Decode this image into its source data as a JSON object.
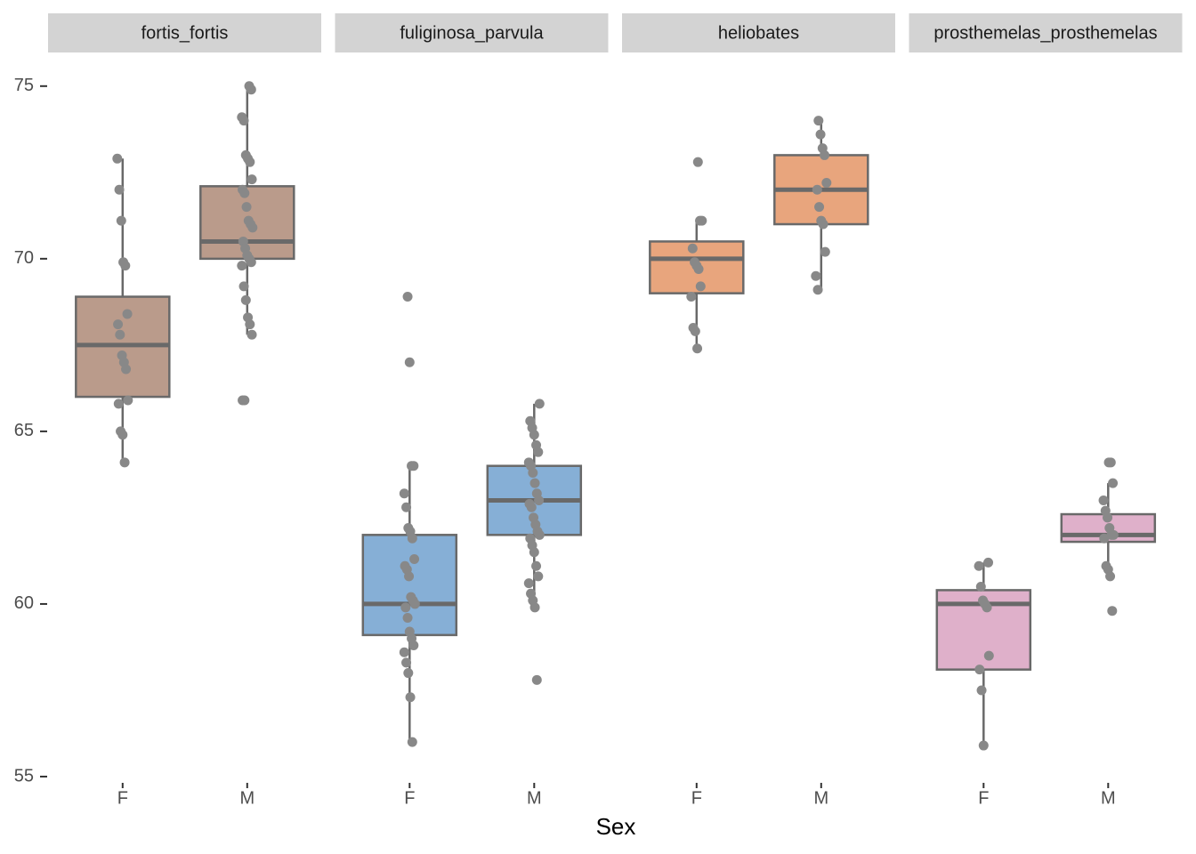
{
  "chart_data": {
    "type": "box",
    "x_label": "Sex",
    "ylim": [
      54.6,
      76
    ],
    "yticks": [
      55,
      60,
      65,
      70,
      75
    ],
    "facets": [
      {
        "title": "fortis_fortis",
        "color": "#ba9b8b",
        "categories": [
          "F",
          "M"
        ],
        "boxes": [
          {
            "min": 64.1,
            "q1": 66,
            "median": 67.5,
            "q3": 68.9,
            "max": 72.9
          },
          {
            "min": 67.8,
            "q1": 70,
            "median": 70.5,
            "q3": 72.1,
            "max": 75
          }
        ],
        "points": [
          [
            72.9,
            72,
            71.1,
            69.9,
            69.8,
            68.4,
            68.1,
            67.8,
            67.2,
            67,
            66.8,
            65.9,
            65.8,
            65,
            64.9,
            64.1
          ],
          [
            75,
            74.9,
            74.1,
            74,
            73,
            72.9,
            72.8,
            72.3,
            72,
            71.9,
            71.5,
            71.1,
            71,
            70.9,
            70.5,
            70.3,
            70.1,
            70,
            69.9,
            69.8,
            69.2,
            68.8,
            68.3,
            68.1,
            67.8,
            65.9,
            65.9
          ]
        ]
      },
      {
        "title": "fuliginosa_parvula",
        "color": "#86afd6",
        "categories": [
          "F",
          "M"
        ],
        "boxes": [
          {
            "min": 56,
            "q1": 59.1,
            "median": 60,
            "q3": 62,
            "max": 64
          },
          {
            "min": 59.9,
            "q1": 62,
            "median": 63,
            "q3": 64,
            "max": 65.8
          }
        ],
        "points": [
          [
            68.9,
            67,
            64,
            64,
            63.2,
            62.8,
            62.2,
            62.1,
            61.9,
            61.3,
            61.1,
            61,
            60.8,
            60.2,
            60.1,
            60,
            59.9,
            59.6,
            59.2,
            59,
            58.8,
            58.6,
            58.3,
            58,
            57.3,
            56
          ],
          [
            65.8,
            65.3,
            65.1,
            64.9,
            64.6,
            64.4,
            64.1,
            64,
            63.8,
            63.5,
            63.2,
            63,
            62.9,
            62.8,
            62.5,
            62.3,
            62.1,
            62,
            61.9,
            61.7,
            61.5,
            61.1,
            60.8,
            60.6,
            60.3,
            60.1,
            59.9,
            57.8
          ]
        ]
      },
      {
        "title": "heliobates",
        "color": "#e8a57d",
        "categories": [
          "F",
          "M"
        ],
        "boxes": [
          {
            "min": 67.4,
            "q1": 69,
            "median": 70,
            "q3": 70.5,
            "max": 71.1
          },
          {
            "min": 69.1,
            "q1": 71,
            "median": 72,
            "q3": 73,
            "max": 74
          }
        ],
        "points": [
          [
            72.8,
            71.1,
            71.1,
            70.3,
            69.9,
            69.8,
            69.7,
            69.2,
            68.9,
            68,
            67.9,
            67.4
          ],
          [
            74,
            73.6,
            73.2,
            73,
            72.2,
            72,
            71.5,
            71.1,
            71,
            70.2,
            69.5,
            69.1
          ]
        ]
      },
      {
        "title": "prosthemelas_prosthemelas",
        "color": "#dfb0ca",
        "categories": [
          "F",
          "M"
        ],
        "boxes": [
          {
            "min": 55.9,
            "q1": 58.1,
            "median": 60,
            "q3": 60.4,
            "max": 61.2
          },
          {
            "min": 60.8,
            "q1": 61.8,
            "median": 62,
            "q3": 62.6,
            "max": 63.5
          }
        ],
        "points": [
          [
            61.2,
            61.1,
            60.5,
            60.1,
            60,
            59.9,
            58.5,
            58.1,
            57.5,
            55.9
          ],
          [
            64.1,
            64.1,
            63.5,
            63,
            62.7,
            62.5,
            62.2,
            62,
            62,
            61.9,
            61.1,
            61,
            60.8,
            59.8
          ]
        ]
      }
    ]
  }
}
